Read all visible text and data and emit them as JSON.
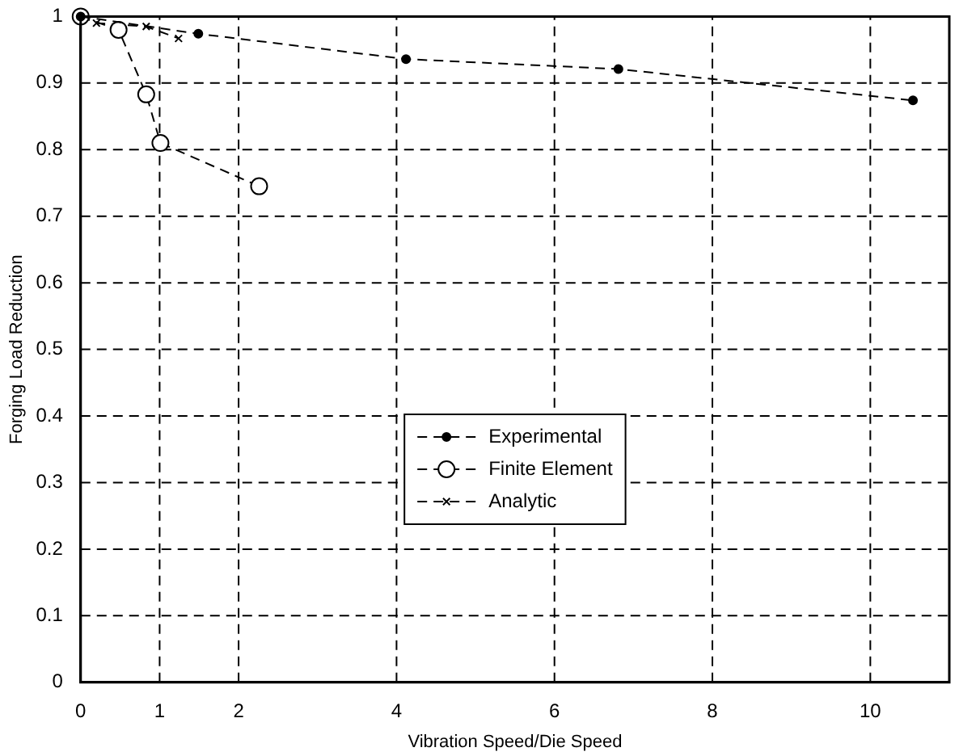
{
  "chart_data": {
    "type": "line",
    "xlabel": "Vibration Speed/Die Speed",
    "ylabel": "Forging Load Reduction",
    "xlim": [
      0,
      11
    ],
    "xticks": [
      0,
      1,
      2,
      4,
      6,
      8,
      10
    ],
    "ylim": [
      0,
      1
    ],
    "yticks": [
      0,
      0.1,
      0.2,
      0.3,
      0.4,
      0.5,
      0.6,
      0.7,
      0.8,
      0.9,
      1
    ],
    "grid": true,
    "legend": "center",
    "line_style": "dashed",
    "series": [
      {
        "name": "Experimental",
        "color": "#000000",
        "marker": "circle",
        "x": [
          0,
          1.49,
          4.12,
          6.81,
          10.54
        ],
        "values": [
          1,
          0.974,
          0.936,
          0.921,
          0.874
        ]
      },
      {
        "name": "Finite Element",
        "color": "#000000",
        "marker": "open-circle",
        "x": [
          0,
          0.48,
          0.83,
          1.01,
          2.26
        ],
        "values": [
          1,
          0.98,
          0.883,
          0.81,
          0.745
        ]
      },
      {
        "name": "Analytic",
        "color": "#000000",
        "marker": "cross",
        "x": [
          0,
          0.2,
          0.83,
          1.24
        ],
        "values": [
          1,
          0.99,
          0.985,
          0.967
        ]
      }
    ]
  }
}
